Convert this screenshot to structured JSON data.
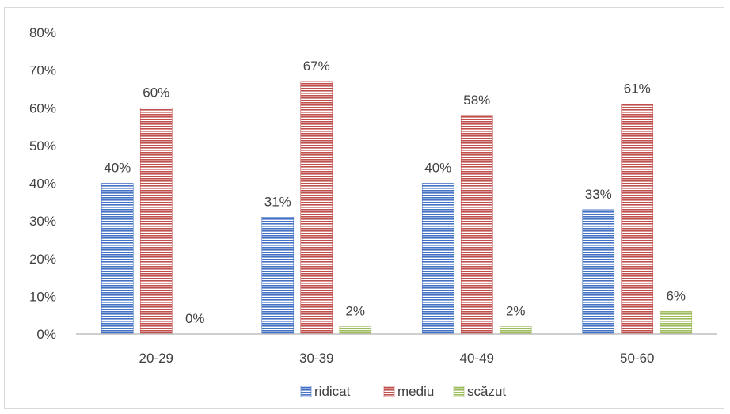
{
  "chart_data": {
    "type": "bar",
    "categories": [
      "20-29",
      "30-39",
      "40-49",
      "50-60"
    ],
    "series": [
      {
        "name": "ridicat",
        "values": [
          40,
          31,
          40,
          33
        ],
        "labels": [
          "40%",
          "31%",
          "40%",
          "33%"
        ],
        "color": "#4472c4"
      },
      {
        "name": "mediu",
        "values": [
          60,
          67,
          58,
          61
        ],
        "labels": [
          "60%",
          "67%",
          "58%",
          "61%"
        ],
        "color": "#c0504d"
      },
      {
        "name": "scăzut",
        "values": [
          0,
          2,
          2,
          6
        ],
        "labels": [
          "0%",
          "2%",
          "2%",
          "6%"
        ],
        "color": "#9bbb59"
      }
    ],
    "ylim": [
      0,
      80
    ],
    "yticks": [
      "0%",
      "10%",
      "20%",
      "30%",
      "40%",
      "50%",
      "60%",
      "70%",
      "80%"
    ],
    "grid": false,
    "legend": "bottom",
    "bar_pattern": "horizontal-stripes"
  }
}
